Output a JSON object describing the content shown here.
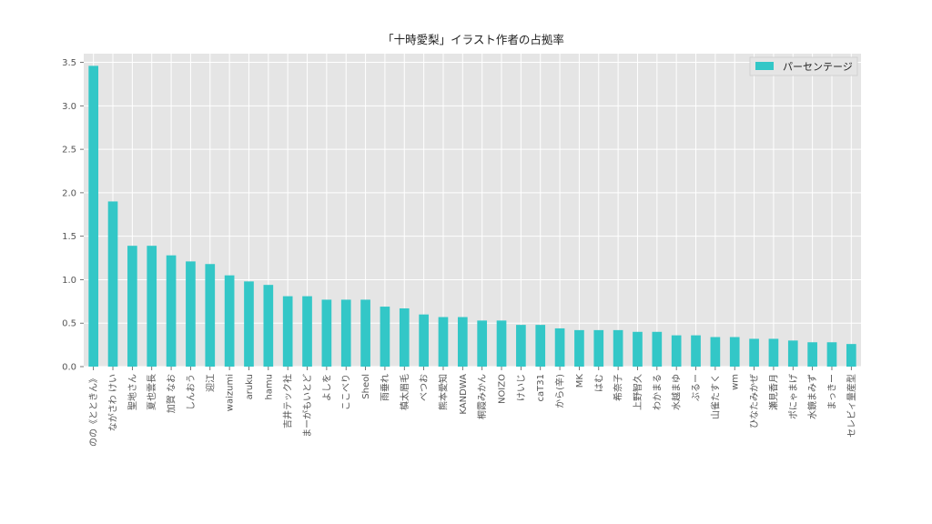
{
  "chart_data": {
    "type": "bar",
    "title": "「十時愛梨」イラスト作者の占拠率",
    "xlabel": "",
    "ylabel": "",
    "ylim": [
      0,
      3.6
    ],
    "yticks": [
      "0.0",
      "0.5",
      "1.0",
      "1.5",
      "2.0",
      "2.5",
      "3.0",
      "3.5"
    ],
    "grid": true,
    "legend_position": "top-right",
    "categories": [
      "のの《とときん》",
      "ながさわ けい",
      "聖地さん",
      "夏也雲長",
      "加賀 なお",
      "しんおう",
      "迎江",
      "waizumi",
      "aruku",
      "hamu",
      "吉井テック社",
      "まーがもいとど",
      "よしを",
      "ここべり",
      "Sheol",
      "雨垂れ",
      "槙太眉毛",
      "べつお",
      "熊本愛知",
      "KANDWA",
      "桐霞みかん",
      "NOIZO",
      "けいじ",
      "caT31",
      "から(辛)",
      "MK",
      "はむ",
      "希奈子",
      "上野智久",
      "わかまる",
      "水越まゆ",
      "ぶるー",
      "山雀たすく",
      "wm",
      "ひなたみかぜ",
      "瀬見香月",
      "ポにゃまげ",
      "水鏡まみず",
      "まっきー",
      "セレビィ量産型"
    ],
    "series": [
      {
        "name": "パーセンテージ",
        "color": "#33c7c7",
        "values": [
          3.46,
          1.9,
          1.39,
          1.39,
          1.28,
          1.21,
          1.18,
          1.05,
          0.98,
          0.94,
          0.81,
          0.81,
          0.77,
          0.77,
          0.77,
          0.69,
          0.67,
          0.6,
          0.57,
          0.57,
          0.53,
          0.53,
          0.48,
          0.48,
          0.44,
          0.42,
          0.42,
          0.42,
          0.4,
          0.4,
          0.36,
          0.36,
          0.34,
          0.34,
          0.32,
          0.32,
          0.3,
          0.28,
          0.28,
          0.26
        ]
      }
    ]
  }
}
